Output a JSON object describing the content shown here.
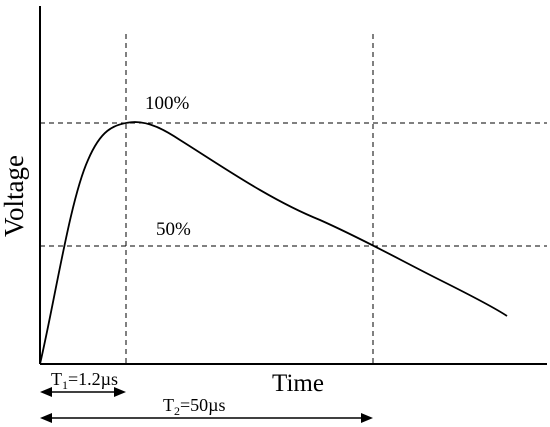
{
  "axes": {
    "y_label": "Voltage",
    "x_label": "Time"
  },
  "levels": {
    "peak_label": "100%",
    "half_label": "50%"
  },
  "intervals": {
    "t1": {
      "symbol": "T",
      "sub": "1",
      "value": "=1.2µs"
    },
    "t2": {
      "symbol": "T",
      "sub": "2",
      "value": "=50µs"
    }
  }
}
